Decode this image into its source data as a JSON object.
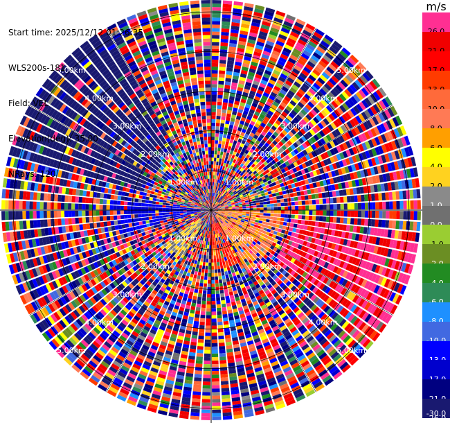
{
  "header": {
    "start_time": "Start time: 2025/12/12 01:26:35",
    "instrument": "WLS200s-181",
    "field": "Field: VEL",
    "elevation": "Elevation(deg): 35.00",
    "nrays": "NRays: 120"
  },
  "colorbar": {
    "unit": "m/s",
    "bins": [
      {
        "label": "26.0",
        "color": "#ff2f92"
      },
      {
        "label": "21.0",
        "color": "#f00000"
      },
      {
        "label": "17.0",
        "color": "#ff0000"
      },
      {
        "label": "13.0",
        "color": "#ff3b00"
      },
      {
        "label": "10.0",
        "color": "#ff6a3a"
      },
      {
        "label": "8.0",
        "color": "#ff7a55"
      },
      {
        "label": "6.0",
        "color": "#ff9f00"
      },
      {
        "label": "4.0",
        "color": "#ffff00"
      },
      {
        "label": "2.0",
        "color": "#ffd21f"
      },
      {
        "label": "1.0",
        "color": "#8a8a8a"
      },
      {
        "label": "0.0",
        "color": "#707070"
      },
      {
        "label": "-1.0",
        "color": "#9acd32"
      },
      {
        "label": "-2.0",
        "color": "#6b8e23"
      },
      {
        "label": "-4.0",
        "color": "#228b22"
      },
      {
        "label": "-6.0",
        "color": "#2e8b57"
      },
      {
        "label": "-8.0",
        "color": "#1e90ff"
      },
      {
        "label": "-10.0",
        "color": "#4169e1"
      },
      {
        "label": "-13.0",
        "color": "#0000ff"
      },
      {
        "label": "-17.0",
        "color": "#0000cd"
      },
      {
        "label": "-21.0",
        "color": "#000080"
      },
      {
        "label": "-26.0",
        "color": "#191970"
      }
    ],
    "bottom_label": "-30.0"
  },
  "chart_data": {
    "type": "heatmap",
    "projection": "polar",
    "field": "VEL",
    "nrays": 120,
    "range_rings_km": [
      1,
      2,
      3,
      4,
      5
    ],
    "range_ring_labels": [
      "1.00km",
      "2.00km",
      "3.00km",
      "4.00km",
      "5.00km"
    ],
    "max_range_km": 5.3,
    "grid": true,
    "colorbar_position": "right",
    "patterns": [
      {
        "az_from": 285,
        "az_to": 330,
        "r_from_km": 1.8,
        "r_to_km": 5.3,
        "value": -26.0
      },
      {
        "az_from": 255,
        "az_to": 275,
        "r_from_km": 0.0,
        "r_to_km": 2.5,
        "value": -13.0
      },
      {
        "az_from": 210,
        "az_to": 235,
        "r_from_km": 0.3,
        "r_to_km": 1.5,
        "value": 2.0
      },
      {
        "az_from": 150,
        "az_to": 180,
        "r_from_km": 0.3,
        "r_to_km": 1.5,
        "value": 17.0
      },
      {
        "az_from": 95,
        "az_to": 130,
        "r_from_km": 2.0,
        "r_to_km": 5.3,
        "value": 26.0
      },
      {
        "az_from": 90,
        "az_to": 150,
        "r_from_km": 0.2,
        "r_to_km": 1.8,
        "value": 8.0
      }
    ]
  }
}
